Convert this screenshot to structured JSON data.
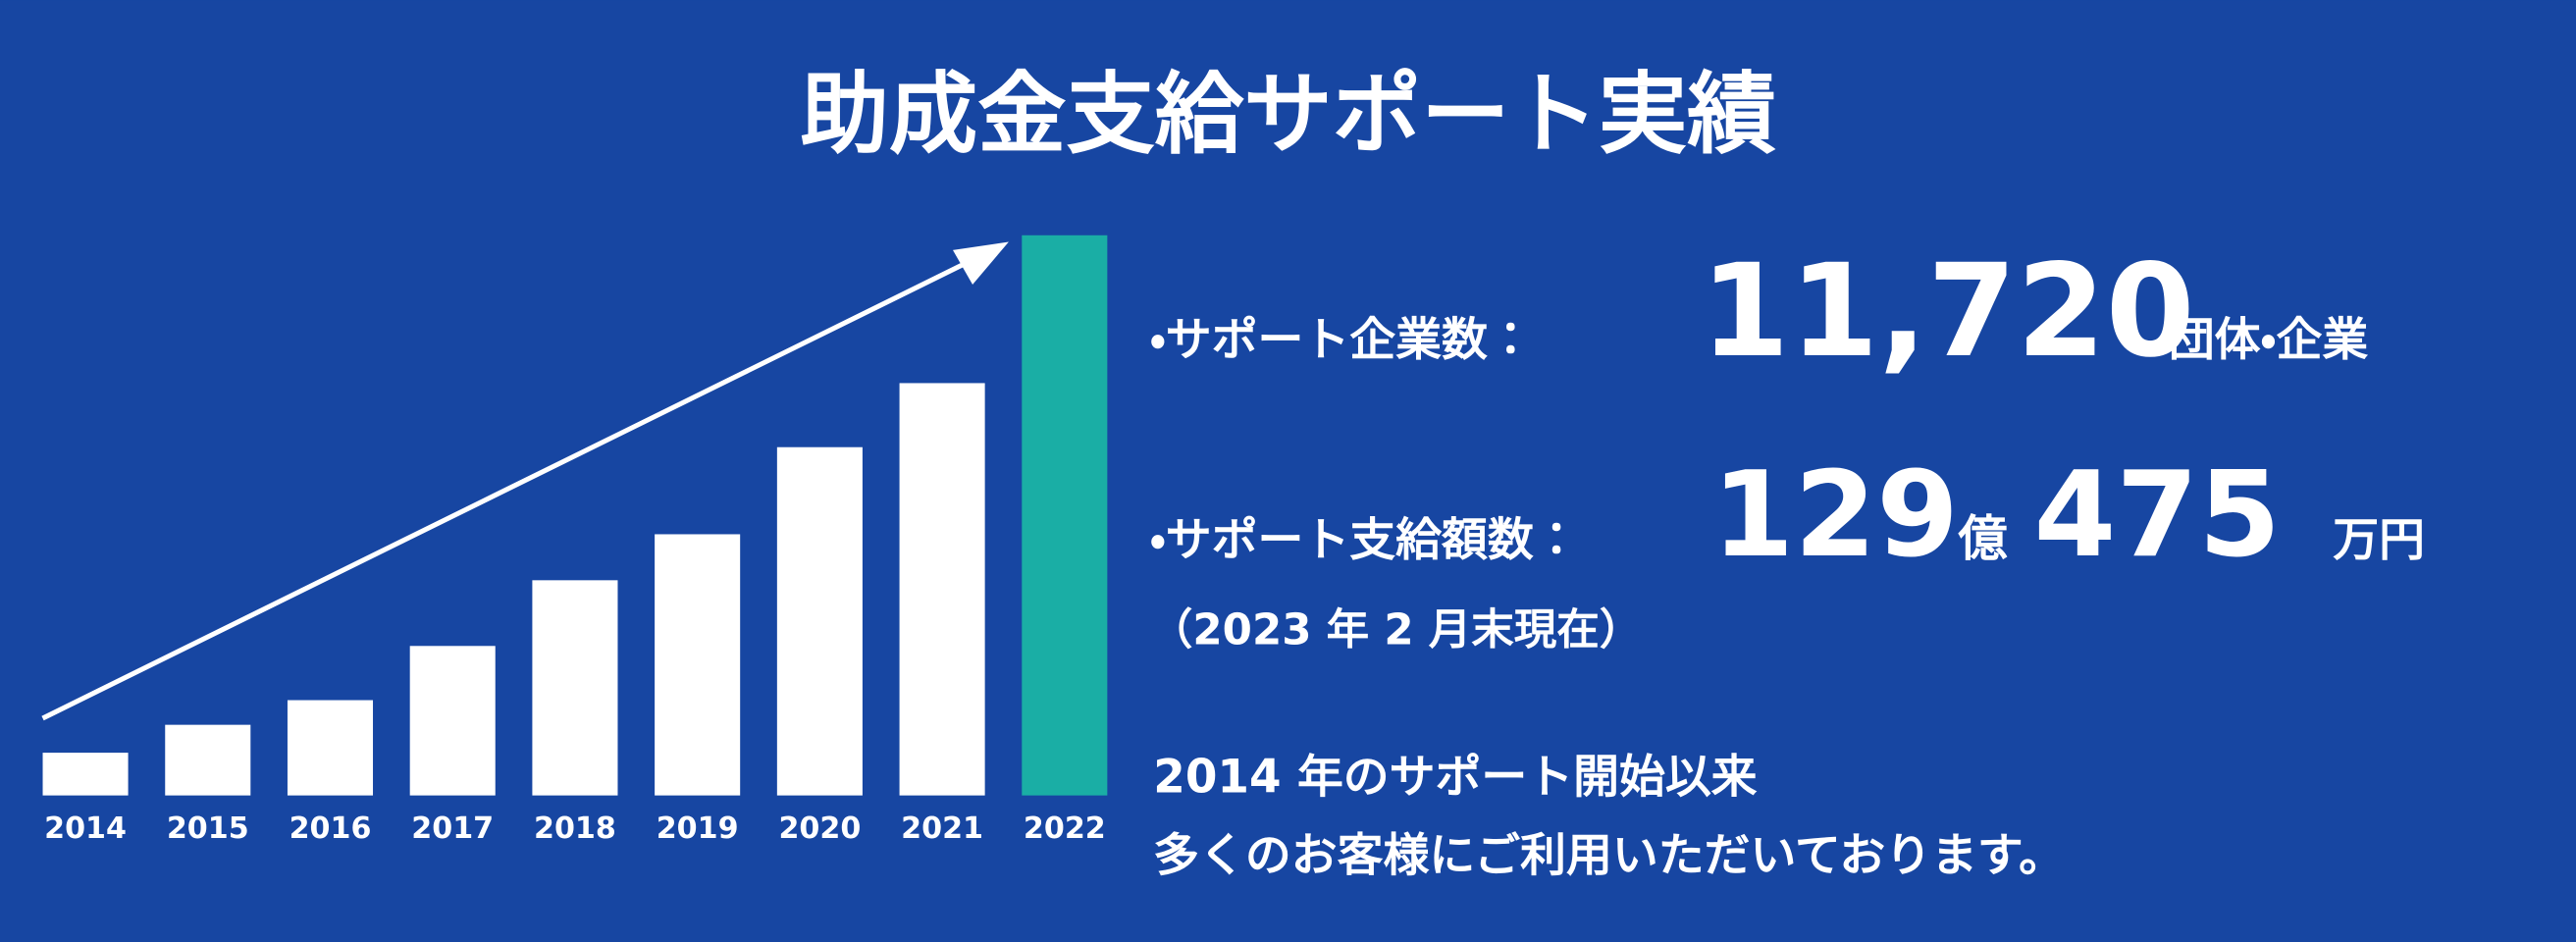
{
  "chart_data": {
    "type": "bar",
    "title": "助成金支給サポート実績",
    "categories": [
      "2014",
      "2015",
      "2016",
      "2017",
      "2018",
      "2019",
      "2020",
      "2021",
      "2022"
    ],
    "values": [
      26,
      43,
      58,
      91,
      131,
      159,
      212,
      251,
      341
    ],
    "colors": [
      "#ffffff",
      "#ffffff",
      "#ffffff",
      "#ffffff",
      "#ffffff",
      "#ffffff",
      "#ffffff",
      "#ffffff",
      "#1aaea5"
    ],
    "ylim": [
      0,
      341
    ]
  },
  "stats": {
    "companies": {
      "label": "・サポート企業数：",
      "value": "11,720",
      "unit": "団体・企業"
    },
    "amount": {
      "label": "・サポート支給額数：",
      "oku": "129",
      "oku_unit": "億",
      "man": "475",
      "man_unit": "万円"
    },
    "as_of": "（2023 年 2 月末現在）",
    "message": [
      "2014 年のサポート開始以来",
      "多くのお客様にご利用いただいております。"
    ]
  }
}
